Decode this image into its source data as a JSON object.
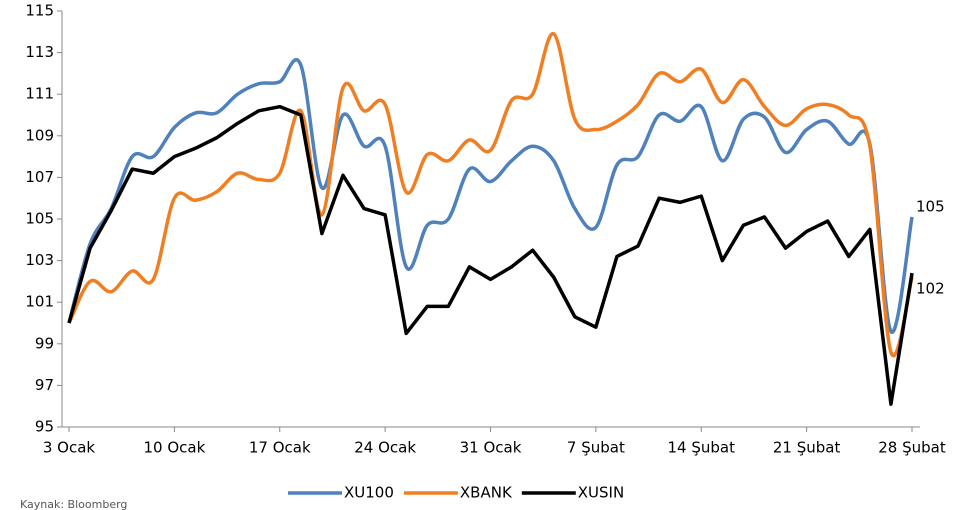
{
  "chart_data": {
    "type": "line",
    "categories": [
      "3 Ocak",
      null,
      null,
      null,
      null,
      "10 Ocak",
      null,
      null,
      null,
      null,
      "17 Ocak",
      null,
      null,
      null,
      null,
      "24 Ocak",
      null,
      null,
      null,
      null,
      "31 Ocak",
      null,
      null,
      null,
      null,
      "7 Şubat",
      null,
      null,
      null,
      null,
      "14 Şubat",
      null,
      null,
      null,
      null,
      "21 Şubat",
      null,
      null,
      null,
      null,
      "28 Şubat"
    ],
    "series": [
      {
        "name": "XU100",
        "color": "#4f81bd",
        "smooth": true,
        "values": [
          100,
          103.8,
          105.5,
          108.0,
          108.0,
          109.4,
          110.1,
          110.1,
          111.0,
          111.5,
          111.6,
          112.4,
          106.5,
          110.0,
          108.5,
          108.5,
          102.7,
          104.7,
          105.0,
          107.4,
          106.8,
          107.8,
          108.5,
          107.8,
          105.5,
          104.6,
          107.6,
          108.0,
          110.0,
          109.7,
          110.4,
          107.8,
          109.8,
          109.9,
          108.2,
          109.3,
          109.7,
          108.6,
          108.6,
          99.6,
          105.1
        ],
        "value_labels": [
          null,
          null,
          null,
          null,
          null,
          null,
          null,
          null,
          null,
          null,
          null,
          null,
          null,
          null,
          null,
          null,
          null,
          null,
          null,
          null,
          null,
          null,
          null,
          null,
          null,
          null,
          null,
          null,
          null,
          null,
          null,
          null,
          null,
          null,
          null,
          null,
          null,
          null,
          null,
          null,
          "105"
        ]
      },
      {
        "name": "XBANK",
        "color": "#f07f23",
        "smooth": true,
        "values": [
          100,
          102.0,
          101.5,
          102.5,
          102.1,
          106.0,
          105.9,
          106.3,
          107.2,
          106.9,
          107.2,
          110.2,
          105.2,
          111.3,
          110.2,
          110.5,
          106.3,
          108.1,
          107.8,
          108.8,
          108.3,
          110.7,
          111.0,
          113.9,
          109.8,
          109.3,
          109.7,
          110.5,
          112.0,
          111.6,
          112.2,
          110.6,
          111.7,
          110.4,
          109.5,
          110.3,
          110.5,
          110.0,
          108.5,
          98.6,
          102.2
        ],
        "value_labels": [
          null,
          null,
          null,
          null,
          null,
          null,
          null,
          null,
          null,
          null,
          null,
          null,
          null,
          null,
          null,
          null,
          null,
          null,
          null,
          null,
          null,
          null,
          null,
          null,
          null,
          null,
          null,
          null,
          null,
          null,
          null,
          null,
          null,
          null,
          null,
          null,
          null,
          null,
          null,
          null,
          "102"
        ]
      },
      {
        "name": "XUSIN",
        "color": "#000000",
        "smooth": false,
        "values": [
          100,
          103.6,
          105.4,
          107.4,
          107.2,
          108.0,
          108.4,
          108.9,
          109.6,
          110.2,
          110.4,
          110.0,
          104.3,
          107.1,
          105.5,
          105.2,
          99.5,
          100.8,
          100.8,
          102.7,
          102.1,
          102.7,
          103.5,
          102.2,
          100.3,
          99.8,
          103.2,
          103.7,
          106.0,
          105.8,
          106.1,
          103.0,
          104.7,
          105.1,
          103.6,
          104.4,
          104.9,
          103.2,
          104.5,
          96.1,
          102.4
        ]
      }
    ],
    "ylim": [
      95,
      115
    ],
    "yticks": [
      95,
      97,
      99,
      101,
      103,
      105,
      107,
      109,
      111,
      113,
      115
    ],
    "grid": false,
    "legend": "bottom",
    "source": "Kaynak: Bloomberg"
  }
}
